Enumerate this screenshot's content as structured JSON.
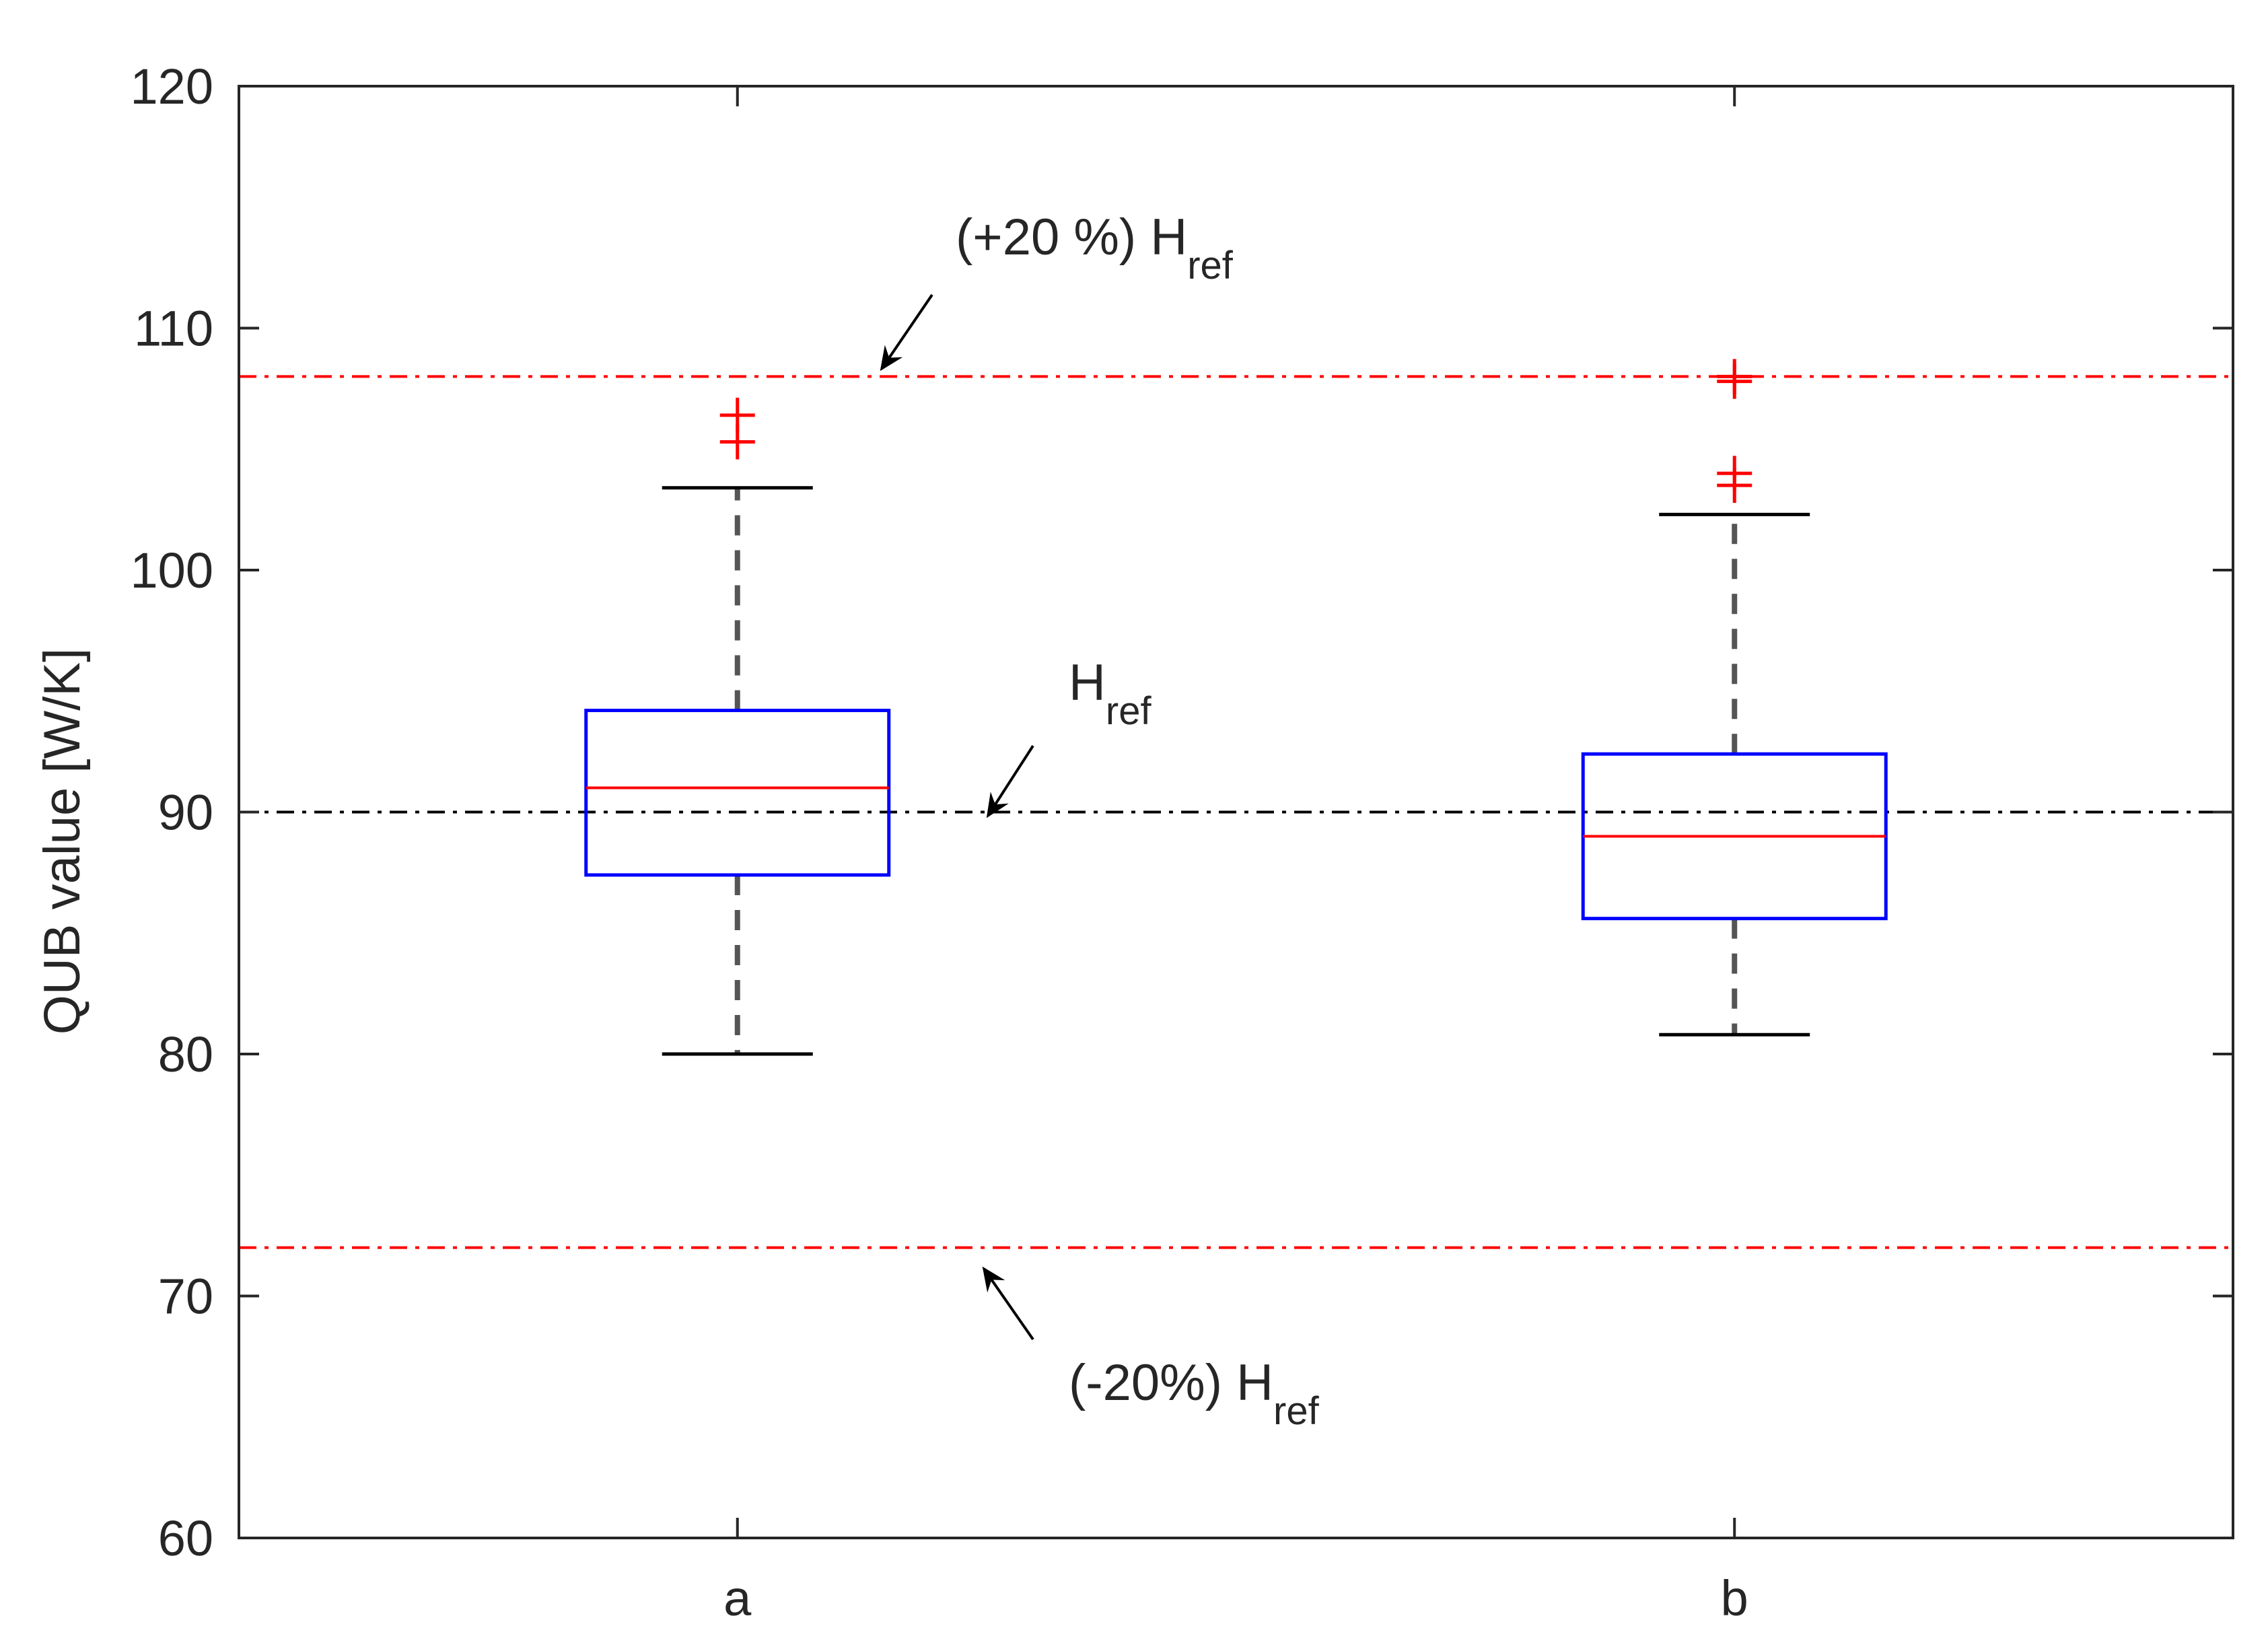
{
  "chart_data": {
    "type": "box",
    "ylabel": "QUB value [W/K]",
    "xlabel": "",
    "title": "",
    "categories": [
      "a",
      "b"
    ],
    "ylim": [
      60,
      120
    ],
    "yticks": [
      60,
      70,
      80,
      90,
      100,
      110,
      120
    ],
    "grid": false,
    "boxes": [
      {
        "category": "a",
        "whisker_low": 80.0,
        "q1": 87.4,
        "median": 91.0,
        "q3": 94.2,
        "whisker_high": 103.4,
        "outliers": [
          105.3,
          106.4
        ]
      },
      {
        "category": "b",
        "whisker_low": 80.8,
        "q1": 85.6,
        "median": 89.0,
        "q3": 92.4,
        "whisker_high": 102.3,
        "outliers": [
          103.5,
          104.0,
          107.8,
          108.0
        ]
      }
    ],
    "reference_lines": [
      {
        "value": 108,
        "color": "#ff0000",
        "style": "dash-dot"
      },
      {
        "value": 90,
        "color": "#000000",
        "style": "dash-dot"
      },
      {
        "value": 72,
        "color": "#ff0000",
        "style": "dash-dot"
      }
    ],
    "annotations": [
      {
        "text": "(+20 %) H",
        "subscript": "ref",
        "points_to": 108
      },
      {
        "text": "H",
        "subscript": "ref",
        "points_to": 90
      },
      {
        "text": "(-20%) H",
        "subscript": "ref",
        "points_to": 72
      }
    ],
    "colors": {
      "box": "#0000ff",
      "median": "#ff0000",
      "whisker": "#000000",
      "outlier": "#ff0000",
      "axis": "#262626"
    }
  }
}
